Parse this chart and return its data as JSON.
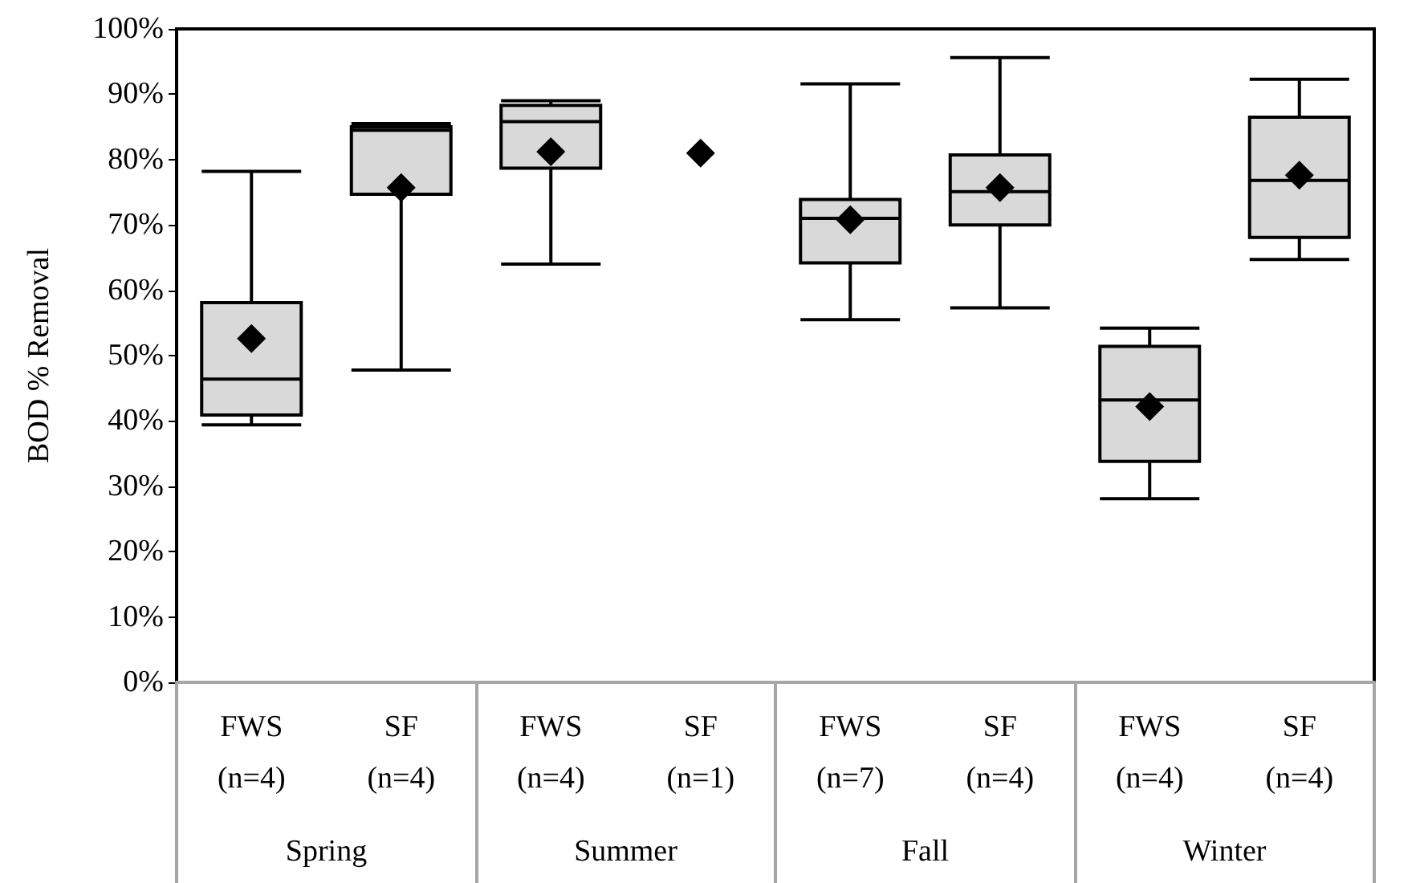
{
  "chart_data": {
    "type": "box",
    "ylabel": "BOD % Removal",
    "categories": [
      "FWS\n(n=4)",
      "SF\n(n=4)",
      "FWS\n(n=4)",
      "SF\n(n=1)",
      "FWS\n(n=7)",
      "SF\n(n=4)",
      "FWS\n(n=4)",
      "SF\n(n=4)"
    ],
    "annotations": [
      "Spring",
      "Summer",
      "Fall",
      "Winter"
    ],
    "color": "#d9d9d9",
    "marker": "diamond",
    "boxes": [
      {
        "low": 39.4,
        "q1": 40.9,
        "median": 46.4,
        "q3": 58.1,
        "high": 78.2,
        "mean": 52.6
      },
      {
        "low": 47.8,
        "q1": 74.7,
        "median": 84.5,
        "q3": 85.0,
        "high": 85.5,
        "mean": 75.7
      },
      {
        "low": 64.0,
        "q1": 78.7,
        "median": 85.8,
        "q3": 88.3,
        "high": 89.0,
        "mean": 81.2
      },
      null,
      {
        "low": 55.5,
        "q1": 64.2,
        "median": 71.0,
        "q3": 73.9,
        "high": 91.6,
        "mean": 70.8
      },
      {
        "low": 57.3,
        "q1": 70.0,
        "median": 75.1,
        "q3": 80.7,
        "high": 95.6,
        "mean": 75.7
      },
      {
        "low": 28.1,
        "q1": 33.8,
        "median": 43.2,
        "q3": 51.4,
        "high": 54.2,
        "mean": 42.2
      },
      {
        "low": 64.7,
        "q1": 68.1,
        "median": 76.8,
        "q3": 86.5,
        "high": 92.3,
        "mean": 77.6
      }
    ],
    "ylim": [
      0,
      100
    ],
    "yticks": [
      {
        "value": 0,
        "label": "0%"
      },
      {
        "value": 10,
        "label": "10%"
      },
      {
        "value": 20,
        "label": "20%"
      },
      {
        "value": 30,
        "label": "30%"
      },
      {
        "value": 40,
        "label": "40%"
      },
      {
        "value": 50,
        "label": "50%"
      },
      {
        "value": 60,
        "label": "60%"
      },
      {
        "value": 70,
        "label": "70%"
      },
      {
        "value": 80,
        "label": "80%"
      },
      {
        "value": 90,
        "label": "90%"
      },
      {
        "value": 100,
        "label": "100%"
      }
    ],
    "series": [
      {
        "type": "scatter",
        "x": [
          "SF\n(n=1)"
        ],
        "values": [
          81.0
        ],
        "color": "#000000"
      }
    ],
    "grid": false
  }
}
